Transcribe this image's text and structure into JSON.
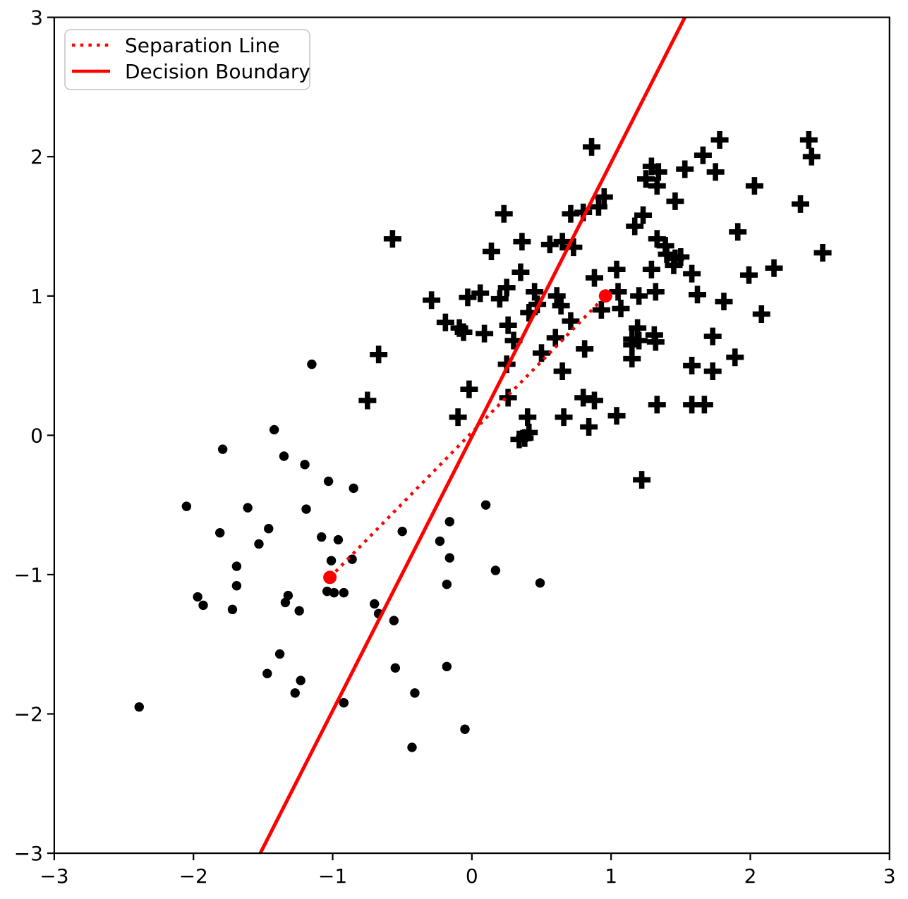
{
  "chart_data": {
    "type": "scatter",
    "title": "",
    "xlabel": "",
    "ylabel": "",
    "xlim": [
      -3,
      3
    ],
    "ylim": [
      -3,
      3
    ],
    "grid": false,
    "xticks": {
      "values": [
        -3,
        -2,
        -1,
        0,
        1,
        2,
        3
      ],
      "labels": [
        "−3",
        "−2",
        "−1",
        "0",
        "1",
        "2",
        "3"
      ]
    },
    "yticks": {
      "values": [
        -3,
        -2,
        -1,
        0,
        1,
        2,
        3
      ],
      "labels": [
        "−3",
        "−2",
        "−1",
        "0",
        "1",
        "2",
        "3"
      ]
    },
    "legend": {
      "position": "upper left",
      "entries": [
        {
          "label": "Separation Line",
          "style": "dotted",
          "color": "#ff0000"
        },
        {
          "label": "Decision Boundary",
          "style": "solid",
          "color": "#ff0000"
        }
      ]
    },
    "series": [
      {
        "name": "class-negative-dots",
        "marker": "circle",
        "color": "#000000",
        "points": [
          [
            -1.42,
            0.04
          ],
          [
            -1.79,
            -0.1
          ],
          [
            -1.35,
            -0.15
          ],
          [
            -1.2,
            -0.21
          ],
          [
            -2.05,
            -0.51
          ],
          [
            -1.61,
            -0.52
          ],
          [
            -1.19,
            -0.53
          ],
          [
            -1.46,
            -0.67
          ],
          [
            -1.81,
            -0.7
          ],
          [
            -1.53,
            -0.78
          ],
          [
            -1.69,
            -0.94
          ],
          [
            -1.69,
            -1.08
          ],
          [
            -1.32,
            -1.15
          ],
          [
            -1.97,
            -1.16
          ],
          [
            -1.93,
            -1.22
          ],
          [
            -1.72,
            -1.25
          ],
          [
            -1.34,
            -1.2
          ],
          [
            -1.24,
            -1.26
          ],
          [
            -1.38,
            -1.57
          ],
          [
            -1.47,
            -1.71
          ],
          [
            -1.23,
            -1.76
          ],
          [
            -1.27,
            -1.85
          ],
          [
            -2.39,
            -1.95
          ],
          [
            -1.15,
            0.51
          ],
          [
            -1.03,
            -0.33
          ],
          [
            -0.85,
            -0.38
          ],
          [
            -1.08,
            -0.73
          ],
          [
            -0.96,
            -0.75
          ],
          [
            -0.5,
            -0.69
          ],
          [
            -1.01,
            -0.9
          ],
          [
            -0.86,
            -0.89
          ],
          [
            -0.23,
            -0.76
          ],
          [
            -0.16,
            -0.88
          ],
          [
            -0.16,
            -0.62
          ],
          [
            0.1,
            -0.5
          ],
          [
            0.17,
            -0.97
          ],
          [
            -0.18,
            -1.07
          ],
          [
            -1.04,
            -1.12
          ],
          [
            -0.99,
            -1.13
          ],
          [
            -0.92,
            -1.13
          ],
          [
            -0.7,
            -1.21
          ],
          [
            -0.67,
            -1.28
          ],
          [
            -0.56,
            -1.33
          ],
          [
            -0.55,
            -1.67
          ],
          [
            -0.18,
            -1.66
          ],
          [
            -0.41,
            -1.85
          ],
          [
            -0.92,
            -1.92
          ],
          [
            -0.05,
            -2.11
          ],
          [
            -0.43,
            -2.24
          ],
          [
            0.49,
            -1.06
          ]
        ]
      },
      {
        "name": "class-positive-pluses",
        "marker": "plus",
        "color": "#000000",
        "points": [
          [
            0.23,
            1.59
          ],
          [
            -0.57,
            1.41
          ],
          [
            0.36,
            1.39
          ],
          [
            0.56,
            1.37
          ],
          [
            0.65,
            1.39
          ],
          [
            0.14,
            1.32
          ],
          [
            0.35,
            1.17
          ],
          [
            0.25,
            1.06
          ],
          [
            0.06,
            1.02
          ],
          [
            -0.03,
            0.99
          ],
          [
            0.2,
            0.98
          ],
          [
            -0.29,
            0.97
          ],
          [
            0.45,
            1.03
          ],
          [
            0.47,
            0.94
          ],
          [
            0.41,
            0.88
          ],
          [
            0.61,
            1.0
          ],
          [
            0.64,
            0.93
          ],
          [
            0.86,
            2.07
          ],
          [
            1.78,
            2.12
          ],
          [
            1.66,
            2.01
          ],
          [
            1.29,
            1.93
          ],
          [
            1.34,
            1.89
          ],
          [
            1.53,
            1.91
          ],
          [
            1.75,
            1.89
          ],
          [
            1.25,
            1.84
          ],
          [
            1.33,
            1.79
          ],
          [
            2.03,
            1.79
          ],
          [
            1.46,
            1.68
          ],
          [
            0.95,
            1.71
          ],
          [
            0.91,
            1.64
          ],
          [
            0.71,
            1.59
          ],
          [
            0.8,
            1.6
          ],
          [
            1.23,
            1.58
          ],
          [
            1.17,
            1.5
          ],
          [
            1.91,
            1.46
          ],
          [
            1.33,
            1.41
          ],
          [
            1.39,
            1.36
          ],
          [
            0.73,
            1.35
          ],
          [
            1.4,
            1.3
          ],
          [
            1.46,
            1.27
          ],
          [
            1.5,
            1.28
          ],
          [
            1.45,
            1.22
          ],
          [
            1.04,
            1.19
          ],
          [
            0.88,
            1.13
          ],
          [
            1.29,
            1.19
          ],
          [
            1.58,
            1.16
          ],
          [
            1.99,
            1.15
          ],
          [
            2.17,
            1.2
          ],
          [
            1.05,
            1.03
          ],
          [
            1.2,
            1.0
          ],
          [
            1.32,
            1.03
          ],
          [
            1.62,
            1.01
          ],
          [
            1.81,
            0.96
          ],
          [
            0.93,
            0.9
          ],
          [
            1.07,
            0.91
          ],
          [
            2.08,
            0.87
          ],
          [
            2.42,
            2.12
          ],
          [
            2.44,
            2.0
          ],
          [
            2.36,
            1.66
          ],
          [
            2.52,
            1.31
          ],
          [
            -0.19,
            0.81
          ],
          [
            -0.09,
            0.77
          ],
          [
            -0.06,
            0.74
          ],
          [
            0.09,
            0.73
          ],
          [
            0.26,
            0.79
          ],
          [
            0.3,
            0.68
          ],
          [
            0.25,
            0.51
          ],
          [
            -0.67,
            0.58
          ],
          [
            -0.75,
            0.25
          ],
          [
            -0.02,
            0.33
          ],
          [
            0.26,
            0.27
          ],
          [
            -0.1,
            0.13
          ],
          [
            0.4,
            0.13
          ],
          [
            0.41,
            0.02
          ],
          [
            0.34,
            -0.03
          ],
          [
            0.38,
            -0.02
          ],
          [
            0.6,
            0.7
          ],
          [
            0.5,
            0.59
          ],
          [
            0.65,
            0.46
          ],
          [
            0.66,
            0.13
          ],
          [
            0.71,
            0.82
          ],
          [
            1.19,
            0.77
          ],
          [
            1.15,
            0.69
          ],
          [
            1.2,
            0.68
          ],
          [
            1.15,
            0.65
          ],
          [
            1.31,
            0.72
          ],
          [
            1.32,
            0.67
          ],
          [
            0.81,
            0.62
          ],
          [
            1.15,
            0.55
          ],
          [
            1.73,
            0.71
          ],
          [
            1.89,
            0.56
          ],
          [
            1.58,
            0.5
          ],
          [
            1.73,
            0.46
          ],
          [
            0.8,
            0.27
          ],
          [
            0.88,
            0.25
          ],
          [
            1.04,
            0.14
          ],
          [
            0.84,
            0.06
          ],
          [
            1.33,
            0.22
          ],
          [
            1.58,
            0.22
          ],
          [
            1.67,
            0.22
          ],
          [
            1.22,
            -0.32
          ]
        ]
      },
      {
        "name": "class-means",
        "marker": "circle-large",
        "color": "#ff0000",
        "points": [
          [
            -1.02,
            -1.02
          ],
          [
            0.96,
            1.0
          ]
        ]
      }
    ],
    "lines": [
      {
        "name": "separation-line",
        "style": "dotted",
        "color": "#ff0000",
        "x1": -1.02,
        "y1": -1.02,
        "x2": 0.96,
        "y2": 1.0
      },
      {
        "name": "decision-boundary",
        "style": "solid",
        "color": "#ff0000",
        "x1": -1.52,
        "y1": -3.0,
        "x2": 1.53,
        "y2": 3.0
      }
    ]
  },
  "colors": {
    "accent": "#ff0000",
    "marker": "#000000",
    "legend_border": "#cccccc",
    "background": "#ffffff"
  }
}
